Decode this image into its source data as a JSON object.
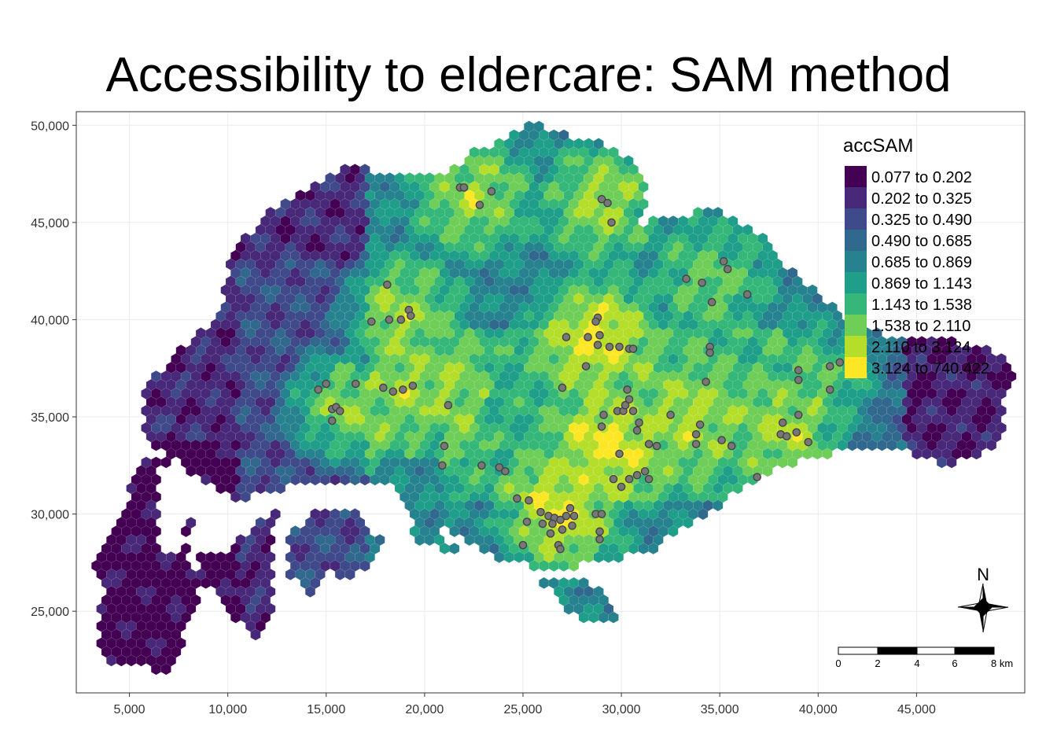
{
  "title": "Accessibility to eldercare: SAM method",
  "colors": {
    "bins": [
      "#440154",
      "#482878",
      "#3e4a89",
      "#31688e",
      "#26828e",
      "#1f9e89",
      "#35b779",
      "#6ece58",
      "#b5de2b",
      "#fde725"
    ],
    "facility_fill": "#777777",
    "facility_stroke": "#444444",
    "grid": "#ebebeb",
    "panel_border": "#333333"
  },
  "chart_data": {
    "type": "heatmap",
    "title": "Accessibility to eldercare: SAM method",
    "x_ticks": [
      5000,
      10000,
      15000,
      20000,
      25000,
      30000,
      35000,
      40000,
      45000
    ],
    "x_tick_labels": [
      "5,000",
      "10,000",
      "15,000",
      "20,000",
      "25,000",
      "30,000",
      "35,000",
      "40,000",
      "45,000"
    ],
    "y_ticks": [
      25000,
      30000,
      35000,
      40000,
      45000,
      50000
    ],
    "y_tick_labels": [
      "25,000",
      "30,000",
      "35,000",
      "40,000",
      "45,000",
      "50,000"
    ],
    "xlim": [
      2300,
      50500
    ],
    "ylim": [
      20800,
      50700
    ],
    "grid": true,
    "legend": {
      "title": "accSAM",
      "placement": "top-right",
      "classes": [
        "0.077 to 0.202",
        "0.202 to 0.325",
        "0.325 to 0.490",
        "0.490 to 0.685",
        "0.685 to 0.869",
        "0.869 to 1.143",
        "1.143 to 1.538",
        "1.538 to 2.110",
        "2.110 to 3.124",
        "3.124 to 740.422"
      ]
    },
    "hotspots": [
      {
        "x": 27000,
        "y": 30000,
        "value": 9
      },
      {
        "x": 29500,
        "y": 33500,
        "value": 9
      },
      {
        "x": 28800,
        "y": 39200,
        "value": 9
      },
      {
        "x": 16000,
        "y": 35500,
        "value": 8
      },
      {
        "x": 19000,
        "y": 36500,
        "value": 8
      },
      {
        "x": 18800,
        "y": 40200,
        "value": 8
      },
      {
        "x": 22500,
        "y": 46400,
        "value": 8
      },
      {
        "x": 29000,
        "y": 46000,
        "value": 8
      },
      {
        "x": 34500,
        "y": 42000,
        "value": 7
      },
      {
        "x": 38600,
        "y": 34400,
        "value": 8
      },
      {
        "x": 40000,
        "y": 37000,
        "value": 7
      },
      {
        "x": 33500,
        "y": 35000,
        "value": 8
      }
    ],
    "facilities": [
      [
        21800,
        46800
      ],
      [
        22000,
        46800
      ],
      [
        23400,
        46600
      ],
      [
        22800,
        45900
      ],
      [
        29000,
        46200
      ],
      [
        29300,
        46000
      ],
      [
        29500,
        45000
      ],
      [
        18100,
        41800
      ],
      [
        17300,
        39900
      ],
      [
        18200,
        40000
      ],
      [
        19200,
        40500
      ],
      [
        19300,
        40200
      ],
      [
        18800,
        40000
      ],
      [
        14600,
        36400
      ],
      [
        15000,
        36700
      ],
      [
        15300,
        35400
      ],
      [
        15500,
        35500
      ],
      [
        15700,
        35300
      ],
      [
        15300,
        34800
      ],
      [
        16500,
        36700
      ],
      [
        17900,
        36500
      ],
      [
        18400,
        36300
      ],
      [
        18900,
        36400
      ],
      [
        19400,
        36600
      ],
      [
        21200,
        35600
      ],
      [
        21000,
        33500
      ],
      [
        20900,
        32500
      ],
      [
        23800,
        32400
      ],
      [
        24100,
        32200
      ],
      [
        22900,
        32500
      ],
      [
        24700,
        30800
      ],
      [
        25300,
        30700
      ],
      [
        25900,
        30100
      ],
      [
        26300,
        29900
      ],
      [
        26600,
        29800
      ],
      [
        26900,
        29700
      ],
      [
        27200,
        29900
      ],
      [
        27400,
        30300
      ],
      [
        27600,
        29900
      ],
      [
        26500,
        29500
      ],
      [
        27000,
        29200
      ],
      [
        27500,
        29400
      ],
      [
        26000,
        29500
      ],
      [
        25200,
        29600
      ],
      [
        25000,
        28400
      ],
      [
        26400,
        29000
      ],
      [
        26800,
        28400
      ],
      [
        26900,
        28200
      ],
      [
        28700,
        30000
      ],
      [
        29000,
        30000
      ],
      [
        28900,
        28700
      ],
      [
        28900,
        29100
      ],
      [
        29600,
        31800
      ],
      [
        30000,
        31400
      ],
      [
        30800,
        32000
      ],
      [
        31200,
        32200
      ],
      [
        31400,
        31800
      ],
      [
        29900,
        33100
      ],
      [
        30400,
        31800
      ],
      [
        29000,
        34500
      ],
      [
        29100,
        35100
      ],
      [
        29800,
        35300
      ],
      [
        30100,
        35300
      ],
      [
        30600,
        35300
      ],
      [
        30900,
        34700
      ],
      [
        30800,
        34300
      ],
      [
        30200,
        35600
      ],
      [
        31400,
        33600
      ],
      [
        31800,
        33500
      ],
      [
        32500,
        35100
      ],
      [
        33800,
        34100
      ],
      [
        34000,
        34600
      ],
      [
        33800,
        33600
      ],
      [
        35100,
        33800
      ],
      [
        35600,
        33500
      ],
      [
        30300,
        36400
      ],
      [
        30400,
        35900
      ],
      [
        29900,
        38600
      ],
      [
        30400,
        38500
      ],
      [
        30600,
        38500
      ],
      [
        29400,
        38600
      ],
      [
        28800,
        38700
      ],
      [
        28300,
        39100
      ],
      [
        28200,
        37600
      ],
      [
        27200,
        39100
      ],
      [
        27000,
        36500
      ],
      [
        28800,
        40100
      ],
      [
        28700,
        39900
      ],
      [
        28900,
        39200
      ],
      [
        33300,
        42100
      ],
      [
        34100,
        41900
      ],
      [
        35200,
        43000
      ],
      [
        35400,
        42600
      ],
      [
        36400,
        41300
      ],
      [
        34600,
        40900
      ],
      [
        34500,
        38600
      ],
      [
        34500,
        38300
      ],
      [
        34300,
        36800
      ],
      [
        38100,
        34100
      ],
      [
        38400,
        34000
      ],
      [
        38900,
        34200
      ],
      [
        38200,
        34700
      ],
      [
        39000,
        35100
      ],
      [
        39500,
        33700
      ],
      [
        36900,
        31900
      ],
      [
        39000,
        37400
      ],
      [
        39000,
        36900
      ],
      [
        40600,
        37600
      ],
      [
        40600,
        36400
      ],
      [
        41100,
        37800
      ]
    ]
  },
  "scale_bar": {
    "labels": [
      "0",
      "2",
      "4",
      "6",
      "8 km"
    ]
  },
  "north_arrow": {
    "label": "N"
  }
}
